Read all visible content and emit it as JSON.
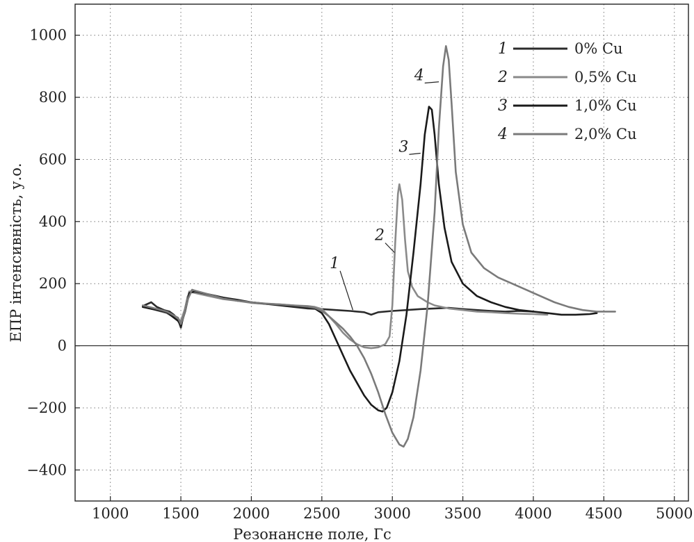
{
  "chart_data": {
    "type": "line",
    "xlabel": "Резонансне поле, Гс",
    "ylabel": "ЕПР інтенсивність, у.о.",
    "xlim": [
      750,
      5100
    ],
    "ylim": [
      -500,
      1100
    ],
    "xticks": [
      1000,
      1500,
      2000,
      2500,
      3000,
      3500,
      4000,
      4500,
      5000
    ],
    "yticks": [
      -400,
      -200,
      0,
      200,
      400,
      600,
      800,
      1000
    ],
    "xtick_labels": [
      "1000",
      "1500",
      "2000",
      "2500",
      "3000",
      "3500",
      "4000",
      "4500",
      "5000"
    ],
    "ytick_labels": [
      "−400",
      "−200",
      "0",
      "200",
      "400",
      "600",
      "800",
      "1000"
    ],
    "grid": true,
    "legend_position": "top-right",
    "series": [
      {
        "num": "1",
        "name": "0% Cu",
        "color": "#2b2b2b",
        "x": [
          1230,
          1290,
          1330,
          1380,
          1420,
          1450,
          1480,
          1500,
          1520,
          1550,
          1580,
          1620,
          1700,
          1800,
          1900,
          2000,
          2100,
          2200,
          2300,
          2400,
          2500,
          2600,
          2700,
          2800,
          2850,
          2900,
          3000,
          3100,
          3200,
          3300,
          3400,
          3500,
          3600,
          3700,
          3800,
          3900,
          4000
        ],
        "y": [
          128,
          140,
          125,
          115,
          110,
          100,
          85,
          58,
          100,
          160,
          180,
          172,
          165,
          155,
          145,
          140,
          135,
          130,
          125,
          120,
          118,
          115,
          112,
          108,
          100,
          108,
          112,
          115,
          118,
          120,
          122,
          118,
          115,
          112,
          110,
          112,
          110
        ]
      },
      {
        "num": "2",
        "name": "0,5% Cu",
        "color": "#8a8a8a",
        "x": [
          1230,
          1300,
          1400,
          1480,
          1500,
          1530,
          1560,
          1600,
          1700,
          1800,
          1900,
          2000,
          2100,
          2200,
          2300,
          2400,
          2450,
          2500,
          2550,
          2600,
          2650,
          2700,
          2750,
          2800,
          2850,
          2900,
          2950,
          2980,
          3000,
          3020,
          3040,
          3050,
          3070,
          3090,
          3110,
          3140,
          3180,
          3250,
          3300,
          3400,
          3500,
          3600,
          3700,
          3800,
          3900,
          4000,
          4100
        ],
        "y": [
          125,
          118,
          105,
          85,
          80,
          120,
          175,
          170,
          160,
          150,
          145,
          138,
          135,
          133,
          130,
          128,
          125,
          118,
          95,
          70,
          42,
          20,
          5,
          -5,
          -8,
          -5,
          5,
          30,
          130,
          330,
          490,
          520,
          470,
          340,
          240,
          190,
          160,
          140,
          130,
          120,
          115,
          110,
          108,
          105,
          103,
          102,
          100
        ]
      },
      {
        "num": "3",
        "name": "1,0% Cu",
        "color": "#1a1a1a",
        "x": [
          1230,
          1300,
          1400,
          1480,
          1500,
          1530,
          1560,
          1600,
          1700,
          1800,
          1900,
          2000,
          2100,
          2200,
          2300,
          2400,
          2450,
          2500,
          2550,
          2600,
          2650,
          2700,
          2750,
          2800,
          2850,
          2900,
          2930,
          2960,
          3000,
          3050,
          3100,
          3150,
          3200,
          3230,
          3260,
          3280,
          3300,
          3330,
          3370,
          3420,
          3500,
          3600,
          3700,
          3800,
          3900,
          4000,
          4100,
          4200,
          4300,
          4400,
          4450
        ],
        "y": [
          125,
          118,
          108,
          80,
          65,
          110,
          170,
          175,
          165,
          155,
          148,
          140,
          135,
          132,
          128,
          125,
          120,
          105,
          70,
          20,
          -30,
          -80,
          -120,
          -160,
          -190,
          -208,
          -212,
          -200,
          -150,
          -50,
          100,
          300,
          520,
          680,
          770,
          760,
          680,
          520,
          380,
          270,
          200,
          160,
          140,
          125,
          115,
          110,
          105,
          100,
          100,
          102,
          105
        ]
      },
      {
        "num": "4",
        "name": "2,0% Cu",
        "color": "#7a7a7a",
        "x": [
          1230,
          1300,
          1400,
          1480,
          1500,
          1520,
          1550,
          1580,
          1620,
          1700,
          1800,
          1900,
          2000,
          2100,
          2200,
          2300,
          2400,
          2450,
          2500,
          2550,
          2600,
          2650,
          2700,
          2750,
          2800,
          2850,
          2900,
          2950,
          3000,
          3050,
          3080,
          3110,
          3150,
          3200,
          3250,
          3300,
          3330,
          3360,
          3380,
          3400,
          3420,
          3450,
          3500,
          3560,
          3650,
          3750,
          3850,
          3950,
          4050,
          4150,
          4250,
          4350,
          4450,
          4580
        ],
        "y": [
          130,
          122,
          110,
          90,
          70,
          95,
          150,
          180,
          175,
          165,
          152,
          145,
          140,
          136,
          133,
          130,
          126,
          122,
          112,
          95,
          75,
          55,
          30,
          0,
          -40,
          -90,
          -150,
          -220,
          -280,
          -318,
          -325,
          -300,
          -230,
          -80,
          130,
          430,
          700,
          900,
          965,
          920,
          780,
          560,
          390,
          300,
          250,
          220,
          200,
          180,
          160,
          140,
          125,
          115,
          110,
          110
        ]
      }
    ]
  }
}
